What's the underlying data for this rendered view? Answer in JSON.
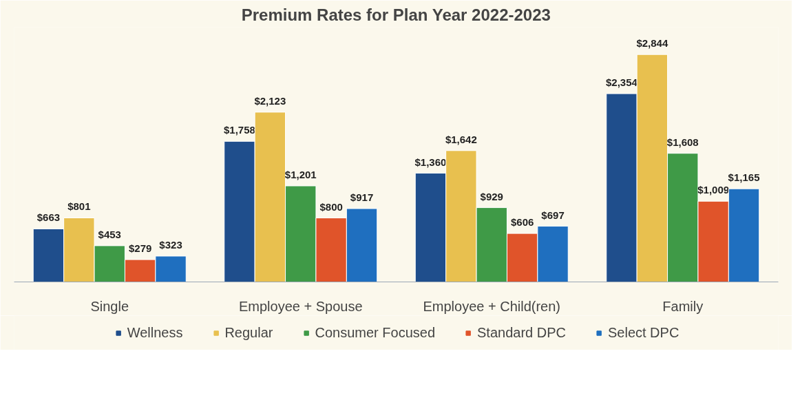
{
  "chart_data": {
    "type": "bar",
    "title": "Premium Rates for Plan Year 2022-2023",
    "categories": [
      "Single",
      "Employee + Spouse",
      "Employee + Child(ren)",
      "Family"
    ],
    "series": [
      {
        "name": "Wellness",
        "color": "#1f4e8c",
        "values": [
          663,
          1758,
          1360,
          2354
        ],
        "value_labels": [
          "$663",
          "$1,758",
          "$1,360",
          "$2,354"
        ]
      },
      {
        "name": "Regular",
        "color": "#e8c04f",
        "values": [
          801,
          2123,
          1642,
          2844
        ],
        "value_labels": [
          "$801",
          "$2,123",
          "$1,642",
          "$2,844"
        ]
      },
      {
        "name": "Consumer Focused",
        "color": "#3f9a47",
        "values": [
          453,
          1201,
          929,
          1608
        ],
        "value_labels": [
          "$453",
          "$1,201",
          "$929",
          "$1,608"
        ]
      },
      {
        "name": "Standard DPC",
        "color": "#e0542a",
        "values": [
          279,
          800,
          606,
          1009
        ],
        "value_labels": [
          "$279",
          "$800",
          "$606",
          "$1,009"
        ]
      },
      {
        "name": "Select DPC",
        "color": "#1f6fbf",
        "values": [
          323,
          917,
          697,
          1165
        ],
        "value_labels": [
          "$323",
          "$917",
          "$697",
          "$1,165"
        ]
      }
    ],
    "legend": "bottom",
    "grid": false
  }
}
